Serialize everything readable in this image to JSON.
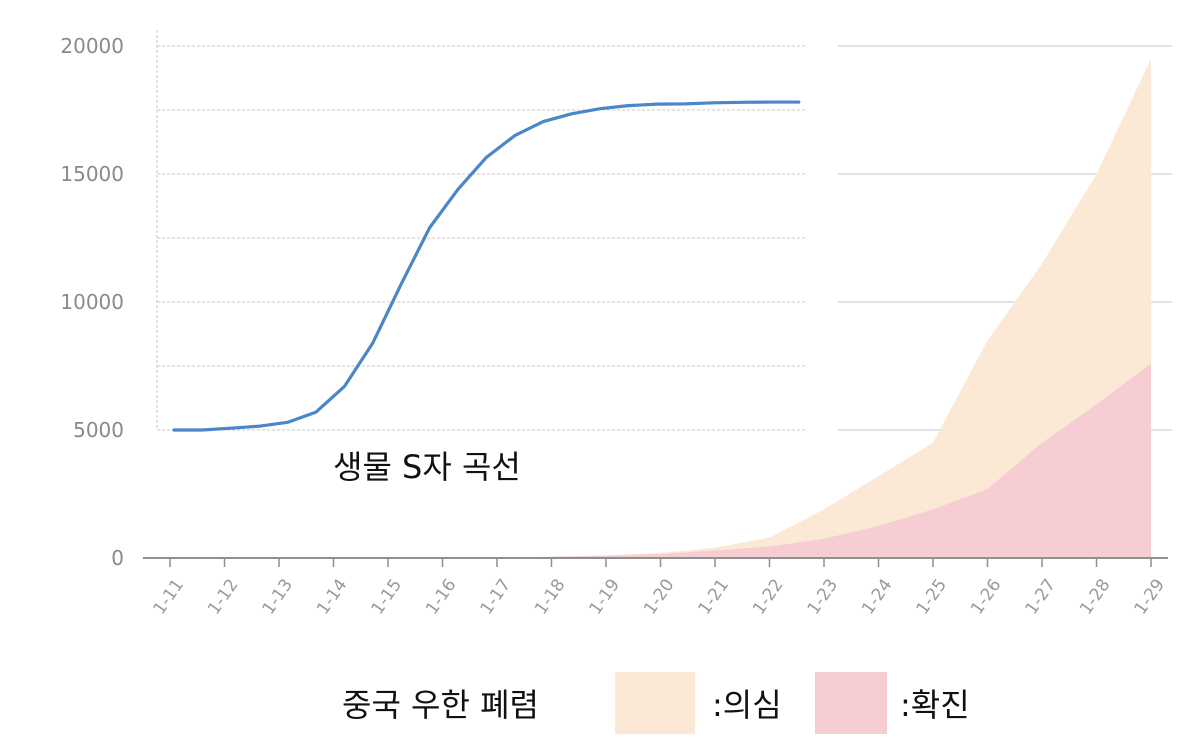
{
  "chart_data": [
    {
      "type": "area",
      "title": "",
      "x": [
        "1-11",
        "1-12",
        "1-13",
        "1-14",
        "1-15",
        "1-16",
        "1-17",
        "1-18",
        "1-19",
        "1-20",
        "1-21",
        "1-22",
        "1-23",
        "1-24",
        "1-25",
        "1-26",
        "1-27",
        "1-28",
        "1-29"
      ],
      "ylim": [
        0,
        20000
      ],
      "yticks": [
        "0",
        "5000",
        "10000",
        "15000",
        "20000"
      ],
      "grid": true,
      "series": [
        {
          "name": ":의심",
          "color": "#fbe9d6",
          "values": [
            0,
            0,
            0,
            0,
            0,
            0,
            0,
            50,
            100,
            200,
            400,
            800,
            1900,
            3200,
            4500,
            8500,
            11500,
            15000,
            19500
          ]
        },
        {
          "name": ":확진",
          "color": "#f6cdd3",
          "values": [
            0,
            0,
            0,
            0,
            0,
            0,
            0,
            50,
            100,
            150,
            300,
            450,
            750,
            1250,
            1900,
            2700,
            4500,
            6000,
            7600
          ]
        }
      ],
      "legend": {
        "caption": "중국 우한 폐렴",
        "placement": "bottom"
      }
    },
    {
      "type": "line",
      "title": "생물 S자 곡선",
      "ylim": [
        0,
        20000
      ],
      "series": [
        {
          "name": "",
          "color": "#4a86c8",
          "x": [
            0,
            1,
            2,
            3,
            4,
            5,
            6,
            7,
            8,
            9,
            10,
            11,
            12,
            13,
            14,
            15,
            16,
            17,
            18,
            19,
            20,
            21,
            22
          ],
          "y": [
            5000,
            5000,
            5070,
            5150,
            5300,
            5700,
            6700,
            8400,
            10700,
            12900,
            14400,
            15650,
            16500,
            17050,
            17350,
            17550,
            17670,
            17730,
            17740,
            17780,
            17800,
            17810,
            17810
          ]
        }
      ]
    }
  ]
}
